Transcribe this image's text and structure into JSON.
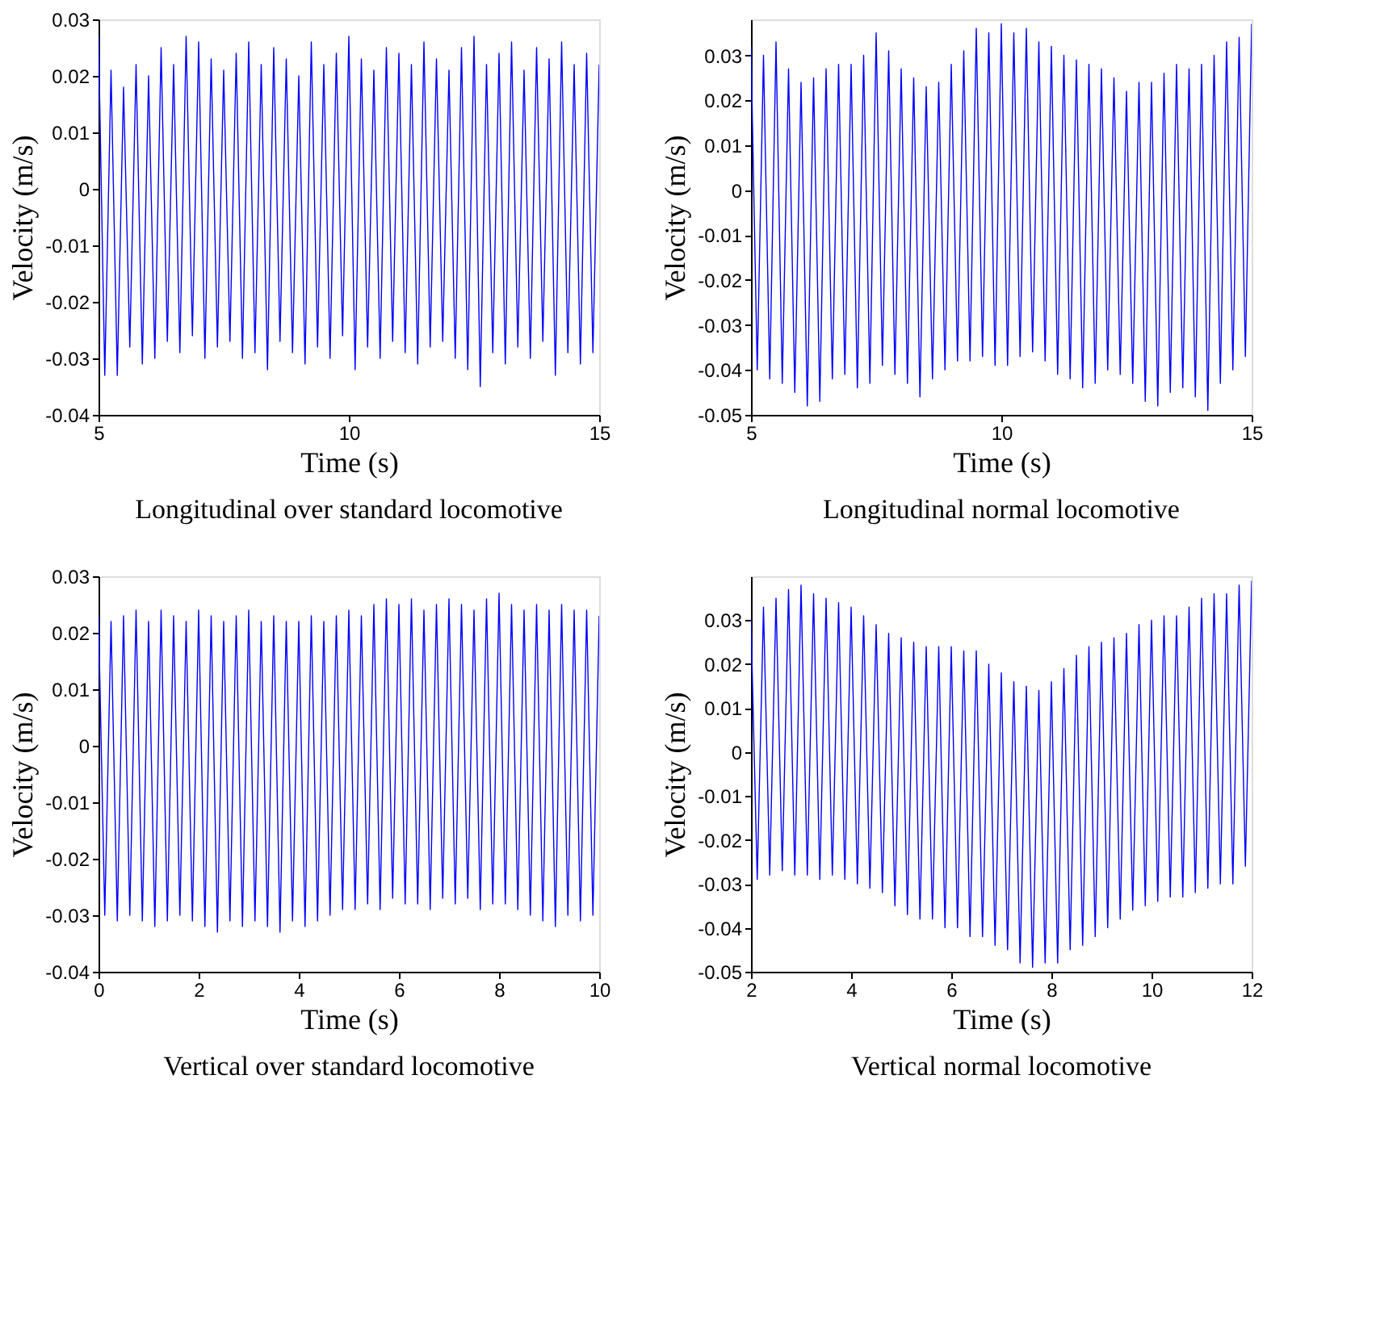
{
  "chart_data": [
    {
      "type": "line",
      "title": "Longitudinal over standard locomotive",
      "xlabel": "Time (s)",
      "ylabel": "Velocity (m/s)",
      "xlim": [
        5,
        15
      ],
      "ylim": [
        -0.04,
        0.03
      ],
      "xticks": [
        5,
        10,
        15
      ],
      "yticks": [
        -0.04,
        -0.03,
        -0.02,
        -0.01,
        0,
        0.01,
        0.02,
        0.03
      ],
      "grid": false,
      "x": [
        5,
        5.125,
        5.25,
        5.375,
        5.5,
        5.625,
        5.75,
        5.875,
        6,
        6.125,
        6.25,
        6.375,
        6.5,
        6.625,
        6.75,
        6.875,
        7,
        7.125,
        7.25,
        7.375,
        7.5,
        7.625,
        7.75,
        7.875,
        8,
        8.125,
        8.25,
        8.375,
        8.5,
        8.625,
        8.75,
        8.875,
        9,
        9.125,
        9.25,
        9.375,
        9.5,
        9.625,
        9.75,
        9.875,
        10,
        10.125,
        10.25,
        10.375,
        10.5,
        10.625,
        10.75,
        10.875,
        11,
        11.125,
        11.25,
        11.375,
        11.5,
        11.625,
        11.75,
        11.875,
        12,
        12.125,
        12.25,
        12.375,
        12.5,
        12.625,
        12.75,
        12.875,
        13,
        13.125,
        13.25,
        13.375,
        13.5,
        13.625,
        13.75,
        13.875,
        14,
        14.125,
        14.25,
        14.375,
        14.5,
        14.625,
        14.75,
        14.875,
        15
      ],
      "series": [
        {
          "color": "#0000ff",
          "values": [
            0.027,
            -0.033,
            0.021,
            -0.033,
            0.018,
            -0.028,
            0.022,
            -0.031,
            0.02,
            -0.03,
            0.025,
            -0.027,
            0.022,
            -0.029,
            0.027,
            -0.026,
            0.026,
            -0.03,
            0.023,
            -0.028,
            0.021,
            -0.027,
            0.024,
            -0.03,
            0.026,
            -0.029,
            0.022,
            -0.032,
            0.025,
            -0.027,
            0.023,
            -0.029,
            0.02,
            -0.031,
            0.026,
            -0.028,
            0.022,
            -0.03,
            0.024,
            -0.026,
            0.027,
            -0.032,
            0.023,
            -0.028,
            0.021,
            -0.03,
            0.025,
            -0.027,
            0.024,
            -0.029,
            0.022,
            -0.031,
            0.026,
            -0.028,
            0.023,
            -0.027,
            0.021,
            -0.03,
            0.025,
            -0.032,
            0.027,
            -0.035,
            0.022,
            -0.029,
            0.024,
            -0.031,
            0.026,
            -0.028,
            0.021,
            -0.03,
            0.025,
            -0.027,
            0.023,
            -0.033,
            0.026,
            -0.029,
            0.022,
            -0.031,
            0.024,
            -0.029,
            0.022
          ]
        }
      ]
    },
    {
      "type": "line",
      "title": "Longitudinal normal locomotive",
      "xlabel": "Time (s)",
      "ylabel": "Velocity (m/s)",
      "xlim": [
        5,
        15
      ],
      "ylim": [
        -0.05,
        0.038
      ],
      "xticks": [
        5,
        10,
        15
      ],
      "yticks": [
        -0.05,
        -0.04,
        -0.03,
        -0.02,
        -0.01,
        0,
        0.01,
        0.02,
        0.03
      ],
      "grid": false,
      "x": [
        5,
        5.125,
        5.25,
        5.375,
        5.5,
        5.625,
        5.75,
        5.875,
        6,
        6.125,
        6.25,
        6.375,
        6.5,
        6.625,
        6.75,
        6.875,
        7,
        7.125,
        7.25,
        7.375,
        7.5,
        7.625,
        7.75,
        7.875,
        8,
        8.125,
        8.25,
        8.375,
        8.5,
        8.625,
        8.75,
        8.875,
        9,
        9.125,
        9.25,
        9.375,
        9.5,
        9.625,
        9.75,
        9.875,
        10,
        10.125,
        10.25,
        10.375,
        10.5,
        10.625,
        10.75,
        10.875,
        11,
        11.125,
        11.25,
        11.375,
        11.5,
        11.625,
        11.75,
        11.875,
        12,
        12.125,
        12.25,
        12.375,
        12.5,
        12.625,
        12.75,
        12.875,
        13,
        13.125,
        13.25,
        13.375,
        13.5,
        13.625,
        13.75,
        13.875,
        14,
        14.125,
        14.25,
        14.375,
        14.5,
        14.625,
        14.75,
        14.875,
        15
      ],
      "series": [
        {
          "color": "#0000ff",
          "values": [
            0.032,
            -0.04,
            0.03,
            -0.042,
            0.033,
            -0.043,
            0.027,
            -0.045,
            0.024,
            -0.048,
            0.025,
            -0.047,
            0.027,
            -0.042,
            0.028,
            -0.041,
            0.028,
            -0.044,
            0.03,
            -0.043,
            0.035,
            -0.039,
            0.031,
            -0.041,
            0.027,
            -0.043,
            0.025,
            -0.046,
            0.023,
            -0.042,
            0.024,
            -0.04,
            0.028,
            -0.038,
            0.031,
            -0.038,
            0.036,
            -0.037,
            0.035,
            -0.039,
            0.037,
            -0.039,
            0.035,
            -0.037,
            0.036,
            -0.036,
            0.033,
            -0.038,
            0.032,
            -0.041,
            0.03,
            -0.042,
            0.029,
            -0.044,
            0.028,
            -0.043,
            0.027,
            -0.04,
            0.025,
            -0.041,
            0.022,
            -0.043,
            0.024,
            -0.047,
            0.024,
            -0.048,
            0.026,
            -0.045,
            0.028,
            -0.044,
            0.027,
            -0.046,
            0.028,
            -0.049,
            0.03,
            -0.043,
            0.033,
            -0.04,
            0.034,
            -0.037,
            0.037
          ]
        }
      ]
    },
    {
      "type": "line",
      "title": "Vertical over standard locomotive",
      "xlabel": "Time (s)",
      "ylabel": "Velocity (m/s)",
      "xlim": [
        0,
        10
      ],
      "ylim": [
        -0.04,
        0.03
      ],
      "xticks": [
        0,
        2,
        4,
        6,
        8,
        10
      ],
      "yticks": [
        -0.04,
        -0.03,
        -0.02,
        -0.01,
        0,
        0.01,
        0.02,
        0.03
      ],
      "grid": false,
      "x": [
        0,
        0.125,
        0.25,
        0.375,
        0.5,
        0.625,
        0.75,
        0.875,
        1,
        1.125,
        1.25,
        1.375,
        1.5,
        1.625,
        1.75,
        1.875,
        2,
        2.125,
        2.25,
        2.375,
        2.5,
        2.625,
        2.75,
        2.875,
        3,
        3.125,
        3.25,
        3.375,
        3.5,
        3.625,
        3.75,
        3.875,
        4,
        4.125,
        4.25,
        4.375,
        4.5,
        4.625,
        4.75,
        4.875,
        5,
        5.125,
        5.25,
        5.375,
        5.5,
        5.625,
        5.75,
        5.875,
        6,
        6.125,
        6.25,
        6.375,
        6.5,
        6.625,
        6.75,
        6.875,
        7,
        7.125,
        7.25,
        7.375,
        7.5,
        7.625,
        7.75,
        7.875,
        8,
        8.125,
        8.25,
        8.375,
        8.5,
        8.625,
        8.75,
        8.875,
        9,
        9.125,
        9.25,
        9.375,
        9.5,
        9.625,
        9.75,
        9.875,
        10
      ],
      "series": [
        {
          "color": "#0000ff",
          "values": [
            0.023,
            -0.03,
            0.022,
            -0.031,
            0.023,
            -0.03,
            0.024,
            -0.031,
            0.022,
            -0.032,
            0.024,
            -0.031,
            0.023,
            -0.03,
            0.022,
            -0.031,
            0.024,
            -0.032,
            0.023,
            -0.033,
            0.022,
            -0.031,
            0.023,
            -0.032,
            0.024,
            -0.031,
            0.022,
            -0.032,
            0.023,
            -0.033,
            0.022,
            -0.031,
            0.022,
            -0.032,
            0.023,
            -0.031,
            0.022,
            -0.03,
            0.023,
            -0.029,
            0.024,
            -0.029,
            0.023,
            -0.028,
            0.025,
            -0.029,
            0.026,
            -0.027,
            0.025,
            -0.028,
            0.026,
            -0.028,
            0.024,
            -0.029,
            0.025,
            -0.027,
            0.026,
            -0.028,
            0.025,
            -0.027,
            0.024,
            -0.029,
            0.026,
            -0.028,
            0.027,
            -0.028,
            0.025,
            -0.029,
            0.024,
            -0.03,
            0.025,
            -0.031,
            0.024,
            -0.032,
            0.025,
            -0.03,
            0.024,
            -0.031,
            0.024,
            -0.03,
            0.023
          ]
        }
      ]
    },
    {
      "type": "line",
      "title": "Vertical normal locomotive",
      "xlabel": "Time (s)",
      "ylabel": "Velocity (m/s)",
      "xlim": [
        2,
        12
      ],
      "ylim": [
        -0.05,
        0.04
      ],
      "xticks": [
        2,
        4,
        6,
        8,
        10,
        12
      ],
      "yticks": [
        -0.05,
        -0.04,
        -0.03,
        -0.02,
        -0.01,
        0,
        0.01,
        0.02,
        0.03
      ],
      "grid": false,
      "x": [
        2,
        2.125,
        2.25,
        2.375,
        2.5,
        2.625,
        2.75,
        2.875,
        3,
        3.125,
        3.25,
        3.375,
        3.5,
        3.625,
        3.75,
        3.875,
        4,
        4.125,
        4.25,
        4.375,
        4.5,
        4.625,
        4.75,
        4.875,
        5,
        5.125,
        5.25,
        5.375,
        5.5,
        5.625,
        5.75,
        5.875,
        6,
        6.125,
        6.25,
        6.375,
        6.5,
        6.625,
        6.75,
        6.875,
        7,
        7.125,
        7.25,
        7.375,
        7.5,
        7.625,
        7.75,
        7.875,
        8,
        8.125,
        8.25,
        8.375,
        8.5,
        8.625,
        8.75,
        8.875,
        9,
        9.125,
        9.25,
        9.375,
        9.5,
        9.625,
        9.75,
        9.875,
        10,
        10.125,
        10.25,
        10.375,
        10.5,
        10.625,
        10.75,
        10.875,
        11,
        11.125,
        11.25,
        11.375,
        11.5,
        11.625,
        11.75,
        11.875,
        12
      ],
      "series": [
        {
          "color": "#0000ff",
          "values": [
            0.03,
            -0.029,
            0.033,
            -0.028,
            0.035,
            -0.027,
            0.037,
            -0.028,
            0.038,
            -0.028,
            0.036,
            -0.029,
            0.035,
            -0.028,
            0.034,
            -0.029,
            0.033,
            -0.03,
            0.031,
            -0.031,
            0.029,
            -0.032,
            0.027,
            -0.035,
            0.026,
            -0.037,
            0.025,
            -0.038,
            0.024,
            -0.038,
            0.024,
            -0.04,
            0.024,
            -0.04,
            0.023,
            -0.042,
            0.023,
            -0.042,
            0.02,
            -0.044,
            0.018,
            -0.045,
            0.016,
            -0.048,
            0.015,
            -0.049,
            0.014,
            -0.048,
            0.016,
            -0.048,
            0.019,
            -0.045,
            0.022,
            -0.044,
            0.024,
            -0.042,
            0.025,
            -0.04,
            0.026,
            -0.038,
            0.027,
            -0.036,
            0.029,
            -0.035,
            0.03,
            -0.034,
            0.031,
            -0.033,
            0.031,
            -0.033,
            0.033,
            -0.032,
            0.035,
            -0.031,
            0.036,
            -0.03,
            0.036,
            -0.03,
            0.038,
            -0.026,
            0.039
          ]
        }
      ]
    }
  ]
}
